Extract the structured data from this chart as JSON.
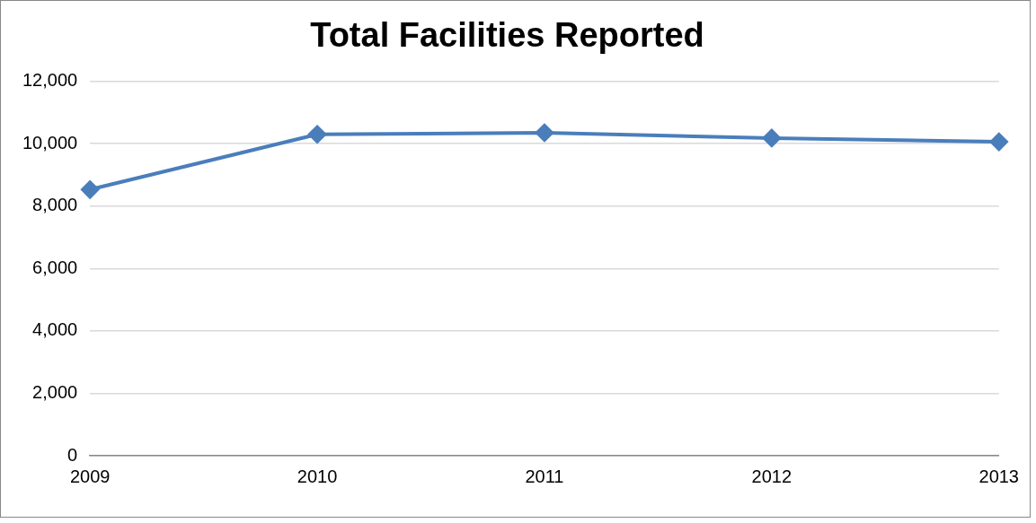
{
  "chart_data": {
    "type": "line",
    "title": "Total Facilities Reported",
    "categories": [
      "2009",
      "2010",
      "2011",
      "2012",
      "2013"
    ],
    "series": [
      {
        "color": "#4a7ebb",
        "values": [
          8530,
          10300,
          10350,
          10180,
          10060
        ]
      }
    ],
    "ylim": [
      0,
      12000
    ],
    "yticks": [
      0,
      {
        "value": 2000,
        "label": "2,000"
      },
      {
        "value": 4000,
        "label": "4,000"
      },
      {
        "value": 6000,
        "label": "6,000"
      },
      {
        "value": 8000,
        "label": "8,000"
      },
      {
        "value": 10000,
        "label": "10,000"
      },
      {
        "value": 12000,
        "label": "12,000"
      }
    ],
    "grid": "y",
    "legend": false,
    "marker": "diamond",
    "line_style": "solid"
  }
}
